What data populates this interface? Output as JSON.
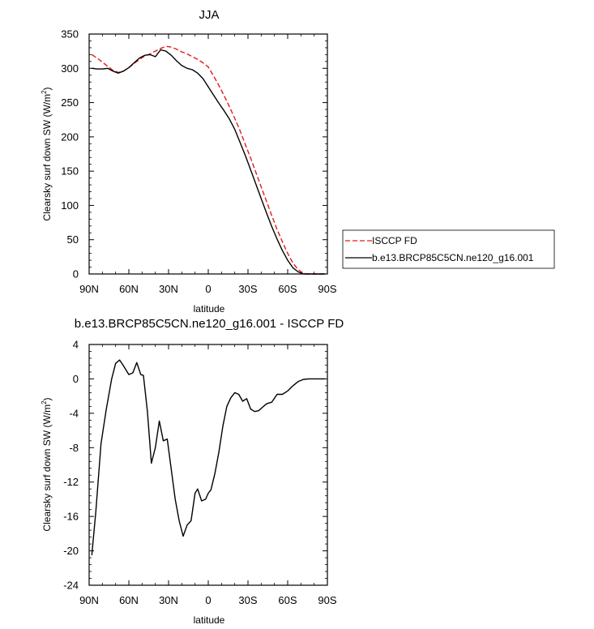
{
  "chart_data": [
    {
      "type": "line",
      "title": "JJA",
      "xlabel": "latitude",
      "ylabel": "Clearsky surf down SW (W/m",
      "ylabel_sup": "2",
      "ylabel_close": ")",
      "xlim": [
        90,
        -90
      ],
      "ylim": [
        0,
        350
      ],
      "xticks": [
        {
          "value": 90,
          "label": "90N"
        },
        {
          "value": 60,
          "label": "60N"
        },
        {
          "value": 30,
          "label": "30N"
        },
        {
          "value": 0,
          "label": "0"
        },
        {
          "value": -30,
          "label": "30S"
        },
        {
          "value": -60,
          "label": "60S"
        },
        {
          "value": -90,
          "label": "90S"
        }
      ],
      "yticks": [
        0,
        50,
        100,
        150,
        200,
        250,
        300,
        350
      ],
      "legend": "outside-right",
      "series": [
        {
          "name": "ISCCP FD",
          "color": "#e31a1c",
          "dash": "dashed",
          "x": [
            88,
            84,
            80,
            76,
            72,
            68,
            64,
            60,
            56,
            52,
            48,
            44,
            40,
            36,
            32,
            28,
            24,
            20,
            16,
            12,
            8,
            4,
            0,
            -4,
            -8,
            -12,
            -16,
            -20,
            -24,
            -28,
            -32,
            -36,
            -40,
            -44,
            -48,
            -52,
            -56,
            -60,
            -64,
            -68,
            -72,
            -76,
            -80,
            -84,
            -88
          ],
          "y": [
            320,
            315,
            309,
            303,
            297,
            294,
            296,
            301,
            307,
            313,
            318,
            321,
            325,
            329,
            332,
            331,
            328,
            324,
            321,
            317,
            313,
            308,
            302,
            289,
            275,
            260,
            244,
            227,
            209,
            189,
            169,
            148,
            127,
            106,
            85,
            65,
            47,
            30,
            16,
            6,
            1,
            0,
            0,
            0,
            0
          ]
        },
        {
          "name": "b.e13.BRCP85C5CN.ne120_g16.001",
          "color": "#000000",
          "dash": "solid",
          "x": [
            88,
            84,
            80,
            76,
            72,
            68,
            64,
            60,
            56,
            52,
            48,
            44,
            40,
            36,
            32,
            28,
            24,
            20,
            16,
            12,
            8,
            4,
            0,
            -4,
            -8,
            -12,
            -16,
            -20,
            -24,
            -28,
            -32,
            -36,
            -40,
            -44,
            -48,
            -52,
            -56,
            -60,
            -64,
            -68,
            -72,
            -76,
            -80,
            -84,
            -88
          ],
          "y": [
            300,
            299,
            299,
            300,
            296,
            293,
            296,
            301,
            308,
            315,
            319,
            320,
            317,
            327,
            325,
            319,
            311,
            304,
            300,
            298,
            293,
            285,
            273,
            261,
            249,
            238,
            226,
            211,
            192,
            173,
            152,
            131,
            110,
            89,
            69,
            51,
            34,
            20,
            9,
            3,
            0,
            0,
            0,
            0,
            0
          ]
        }
      ]
    },
    {
      "type": "line",
      "title": "b.e13.BRCP85C5CN.ne120_g16.001 - ISCCP FD",
      "xlabel": "latitude",
      "ylabel": "Clearsky surf down SW (W/m",
      "ylabel_sup": "2",
      "ylabel_close": ")",
      "xlim": [
        90,
        -90
      ],
      "ylim": [
        -24,
        4
      ],
      "xticks": [
        {
          "value": 90,
          "label": "90N"
        },
        {
          "value": 60,
          "label": "60N"
        },
        {
          "value": 30,
          "label": "30N"
        },
        {
          "value": 0,
          "label": "0"
        },
        {
          "value": -30,
          "label": "30S"
        },
        {
          "value": -60,
          "label": "60S"
        },
        {
          "value": -90,
          "label": "90S"
        }
      ],
      "yticks": [
        4,
        0,
        -4,
        -8,
        -12,
        -16,
        -20,
        -24
      ],
      "series": [
        {
          "color": "#000000",
          "dash": "solid",
          "x": [
            88,
            85,
            81,
            77,
            73,
            70,
            67,
            64,
            60,
            57,
            54,
            51,
            49,
            46,
            43,
            40,
            37,
            34,
            31,
            28,
            25,
            22,
            19,
            16,
            13,
            10,
            8,
            5,
            2,
            0,
            -2,
            -5,
            -8,
            -11,
            -14,
            -17,
            -20,
            -23,
            -26,
            -29,
            -32,
            -35,
            -38,
            -41,
            -44,
            -48,
            -52,
            -56,
            -60,
            -64,
            -68,
            -72,
            -76,
            -80,
            -84,
            -88
          ],
          "y": [
            -20.5,
            -15.5,
            -7.5,
            -3.5,
            0.0,
            1.8,
            2.2,
            1.5,
            0.5,
            0.7,
            1.9,
            0.5,
            0.4,
            -3.8,
            -9.8,
            -8.0,
            -4.9,
            -7.2,
            -7.0,
            -10.5,
            -14.0,
            -16.5,
            -18.3,
            -17.0,
            -16.5,
            -13.3,
            -12.8,
            -14.2,
            -14.0,
            -13.3,
            -12.9,
            -11.0,
            -8.5,
            -5.5,
            -3.2,
            -2.2,
            -1.6,
            -1.8,
            -2.6,
            -2.3,
            -3.5,
            -3.8,
            -3.7,
            -3.3,
            -2.9,
            -2.7,
            -1.8,
            -1.8,
            -1.4,
            -0.8,
            -0.3,
            -0.05,
            0.0,
            0.0,
            0.0,
            0.0
          ]
        }
      ]
    }
  ]
}
